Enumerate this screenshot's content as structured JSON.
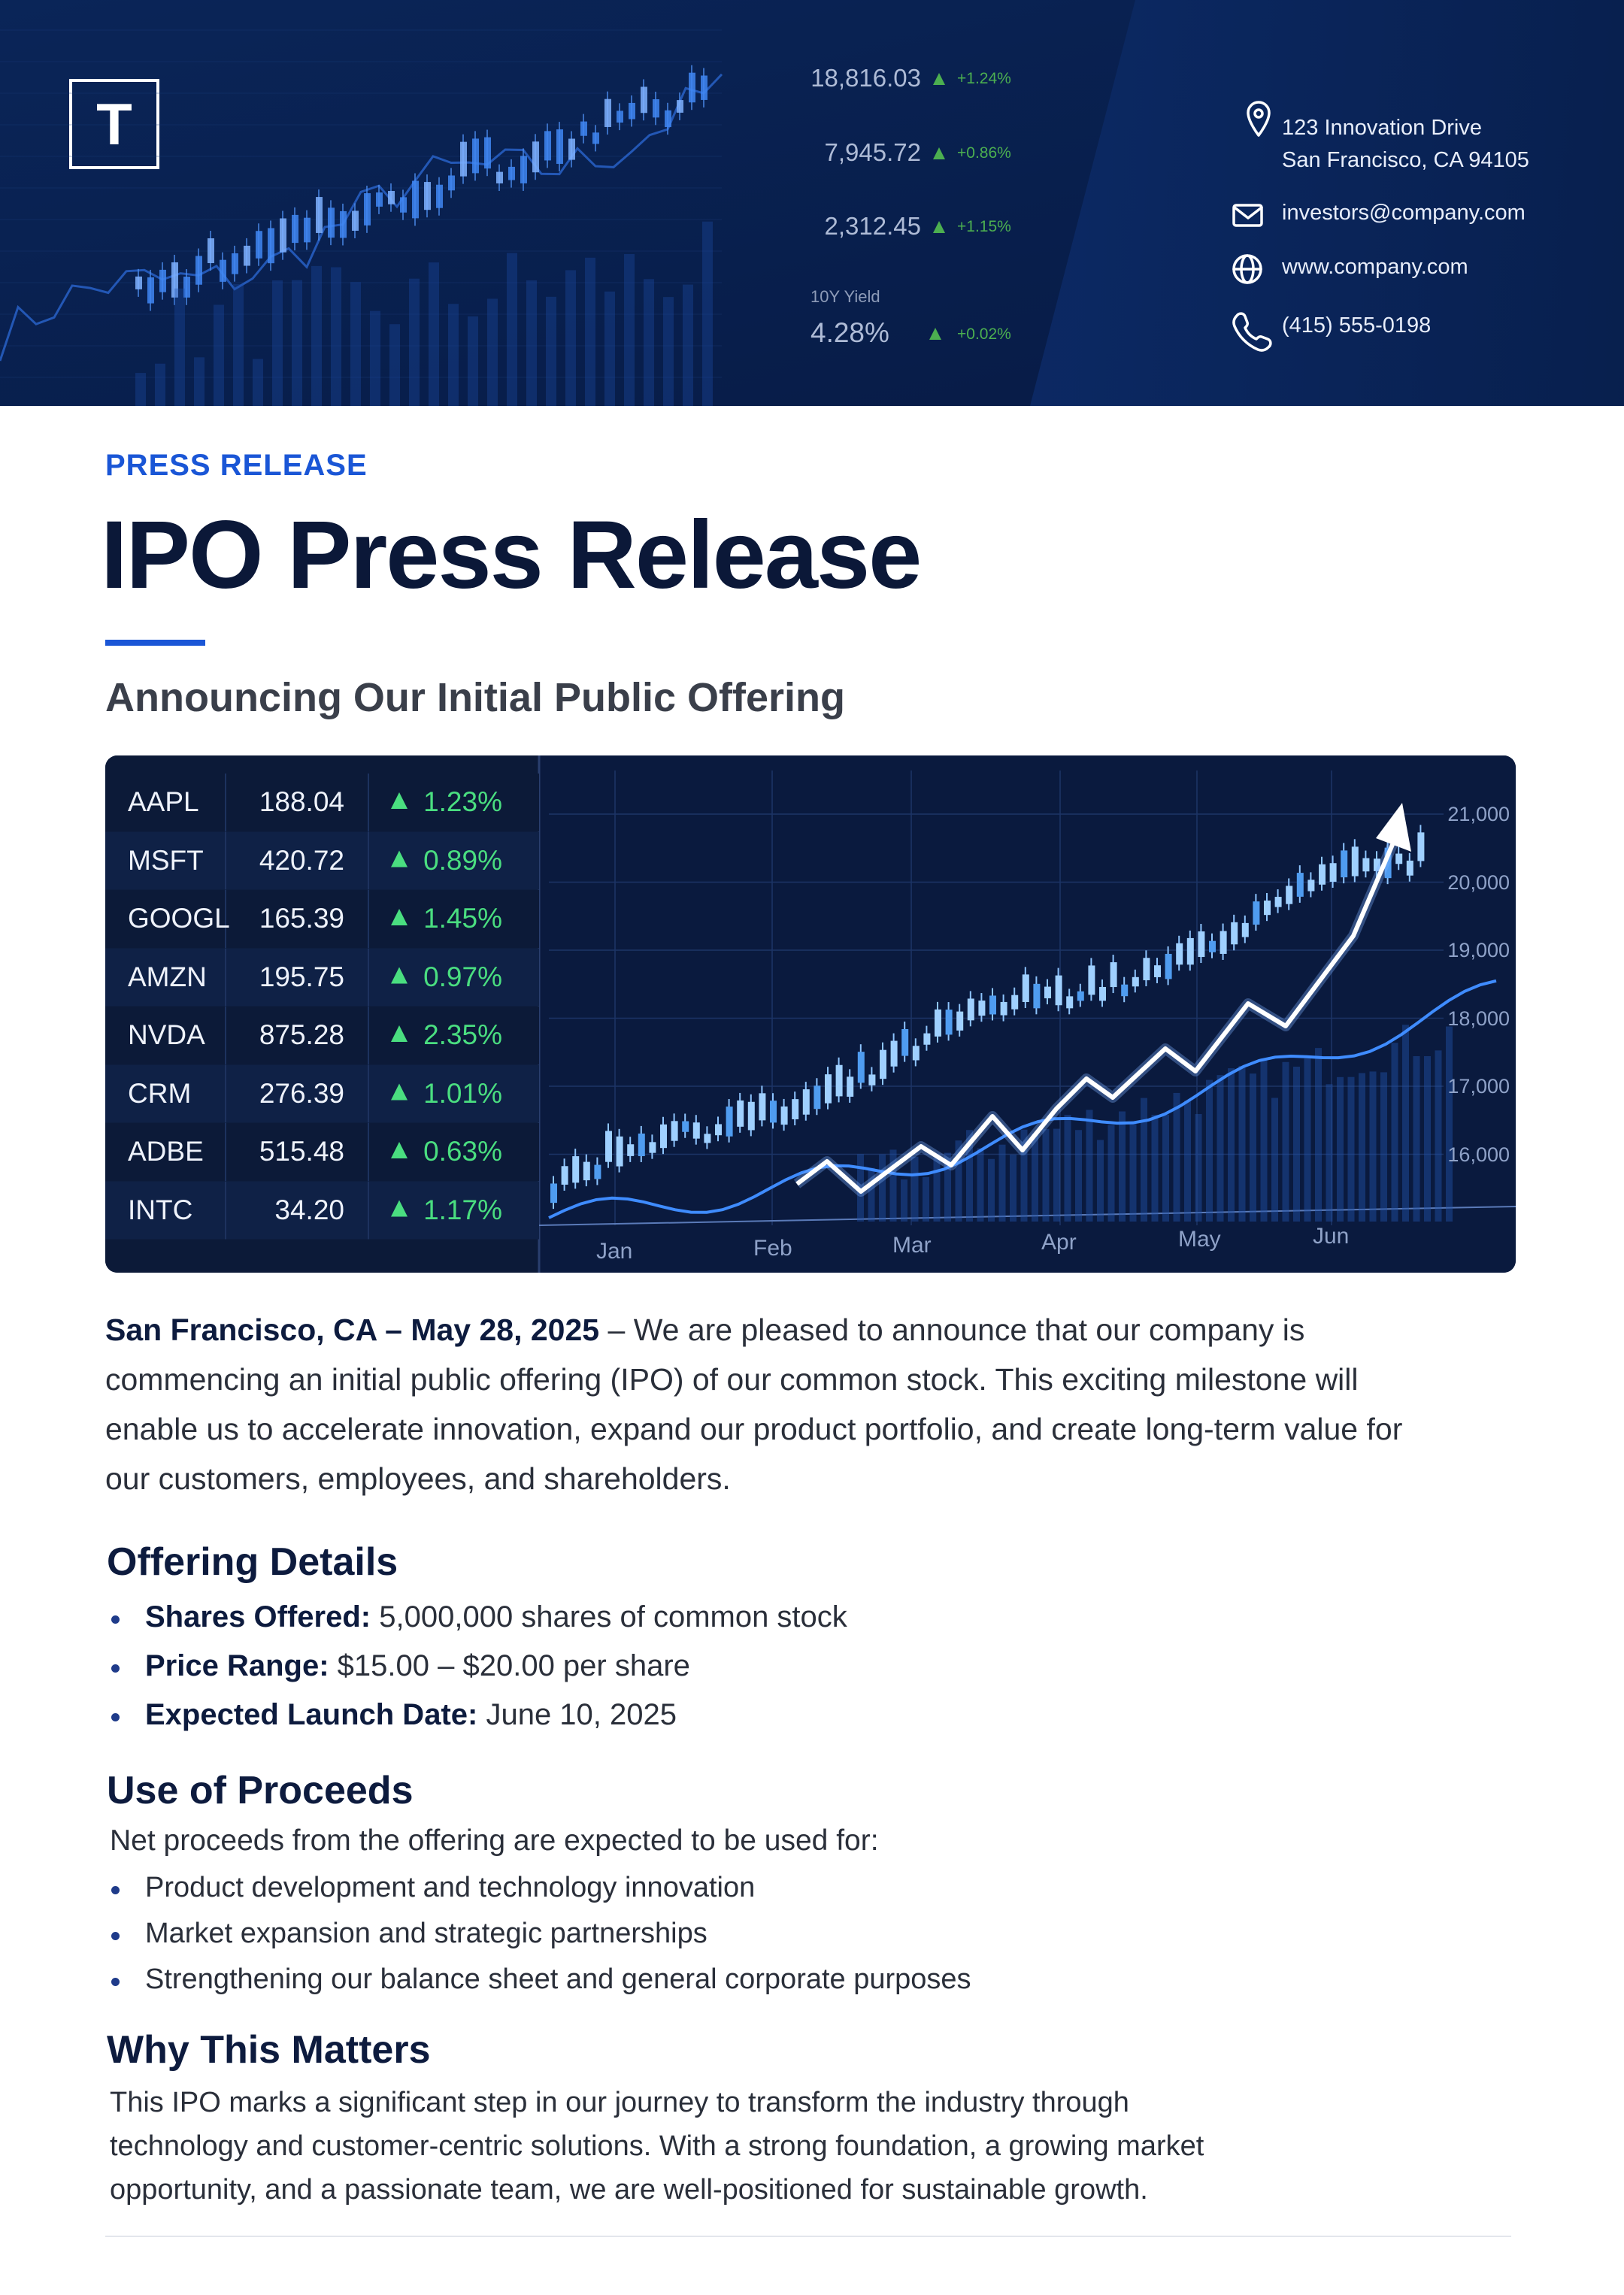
{
  "header": {
    "logo": "T",
    "market": [
      {
        "value": "18,816.03",
        "change": "+1.24%"
      },
      {
        "value": "7,945.72",
        "change": "+0.86%"
      },
      {
        "value": "2,312.45",
        "change": "+1.15%"
      },
      {
        "label": "10Y Yield",
        "value": "4.28%",
        "change": "+0.02%"
      }
    ],
    "contact": {
      "address": [
        "123 Innovation Drive",
        "San Francisco, CA 94105"
      ],
      "email": "investors@company.com",
      "website": "www.company.com",
      "phone": "(415) 555-0198"
    }
  },
  "label": "PRESS RELEASE",
  "title": "IPO Press Release",
  "subtitle": "Announcing Our Initial Public Offering",
  "hero": {
    "stocks": [
      {
        "symbol": "AAPL",
        "price": "188.04",
        "change": "1.23%"
      },
      {
        "symbol": "MSFT",
        "price": "420.72",
        "change": "0.89%"
      },
      {
        "symbol": "GOOGL",
        "price": "165.39",
        "change": "1.45%"
      },
      {
        "symbol": "AMZN",
        "price": "195.75",
        "change": "0.97%"
      },
      {
        "symbol": "NVDA",
        "price": "875.28",
        "change": "2.35%"
      },
      {
        "symbol": "CRM",
        "price": "276.39",
        "change": "1.01%"
      },
      {
        "symbol": "ADBE",
        "price": "515.48",
        "change": "0.63%"
      },
      {
        "symbol": "INTC",
        "price": "34.20",
        "change": "1.17%"
      }
    ],
    "y_labels": [
      "21,000",
      "20,000",
      "19,000",
      "18,000",
      "17,000",
      "16,000"
    ],
    "x_labels": [
      "Jan",
      "Feb",
      "Mar",
      "Apr",
      "May",
      "Jun"
    ]
  },
  "body": {
    "dateline": "San Francisco, CA – May 28, 2025",
    "lead": "– We are pleased to announce that our company is commencing an initial public offering (IPO) of our common stock. This exciting milestone will enable us to accelerate innovation, expand our product portfolio, and create long-term value for our customers, employees, and shareholders."
  },
  "offering": {
    "heading": "Offering Details",
    "items": [
      {
        "label": "Shares Offered:",
        "text": "5,000,000 shares of common stock"
      },
      {
        "label": "Price Range:",
        "text": "$15.00 – $20.00 per share"
      },
      {
        "label": "Expected Launch Date:",
        "text": "June 10, 2025"
      }
    ]
  },
  "proceeds": {
    "heading": "Use of Proceeds",
    "intro": "Net proceeds from the offering are expected to be used for:",
    "items": [
      "Product development and technology innovation",
      "Market expansion and strategic partnerships",
      "Strengthening our balance sheet and general corporate purposes"
    ]
  },
  "why": {
    "heading": "Why This Matters",
    "text": "This IPO marks a significant step in our journey to transform the industry through technology and customer-centric solutions. With a strong foundation, a growing market opportunity, and a passionate team, we are well-positioned for sustainable growth."
  }
}
